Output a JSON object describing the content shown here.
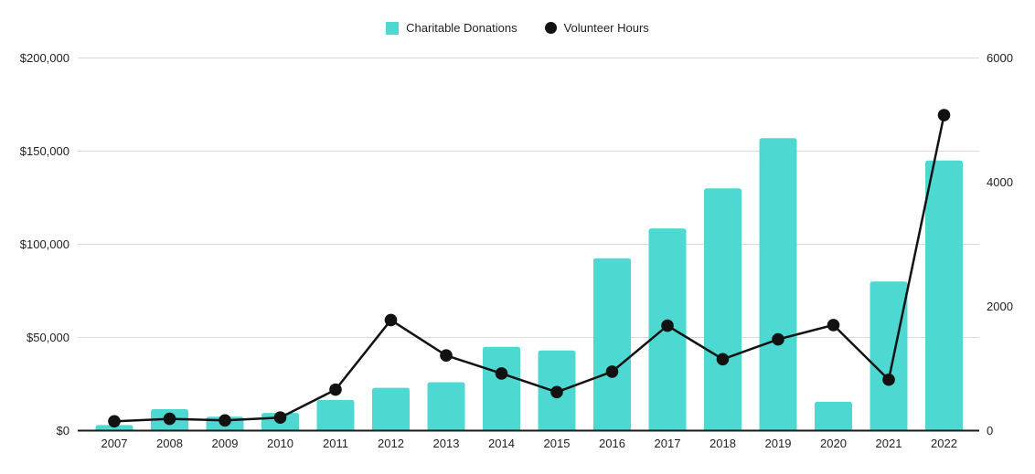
{
  "legend": {
    "items": [
      {
        "label": "Charitable Donations",
        "swatch": "square",
        "color": "#4DD9D2"
      },
      {
        "label": "Volunteer Hours",
        "swatch": "circle",
        "color": "#121212"
      }
    ]
  },
  "colors": {
    "bar": "#4DD9D2",
    "line": "#121212",
    "point": "#121212",
    "grid": "#D9D9D9",
    "axis_line": "#1A1A1A",
    "text": "#1F1F1F",
    "background": "#FFFFFF"
  },
  "chart_data": {
    "type": "combo-bar-line",
    "title": "",
    "categories": [
      "2007",
      "2008",
      "2009",
      "2010",
      "2011",
      "2012",
      "2013",
      "2014",
      "2015",
      "2016",
      "2017",
      "2018",
      "2019",
      "2020",
      "2021",
      "2022"
    ],
    "series": [
      {
        "name": "Charitable Donations",
        "type": "bar",
        "axis": "left",
        "color": "#4DD9D2",
        "values": [
          3000,
          11500,
          7500,
          9500,
          16500,
          23000,
          26000,
          45000,
          43000,
          92500,
          108500,
          130000,
          157000,
          15500,
          80000,
          145000
        ]
      },
      {
        "name": "Volunteer Hours",
        "type": "line",
        "axis": "right",
        "color": "#121212",
        "values": [
          150,
          190,
          165,
          210,
          660,
          1780,
          1210,
          920,
          620,
          950,
          1690,
          1150,
          1470,
          1700,
          820,
          5080
        ]
      }
    ],
    "left_axis": {
      "range": [
        0,
        200000
      ],
      "ticks": [
        {
          "value": 0,
          "label": "$0"
        },
        {
          "value": 50000,
          "label": "$50,000"
        },
        {
          "value": 100000,
          "label": "$100,000"
        },
        {
          "value": 150000,
          "label": "$150,000"
        },
        {
          "value": 200000,
          "label": "$200,000"
        }
      ]
    },
    "right_axis": {
      "range": [
        0,
        6000
      ],
      "ticks": [
        {
          "value": 0,
          "label": "0"
        },
        {
          "value": 2000,
          "label": "2000"
        },
        {
          "value": 4000,
          "label": "4000"
        },
        {
          "value": 6000,
          "label": "6000"
        }
      ]
    },
    "grid": true,
    "legend_position": "top-center"
  }
}
